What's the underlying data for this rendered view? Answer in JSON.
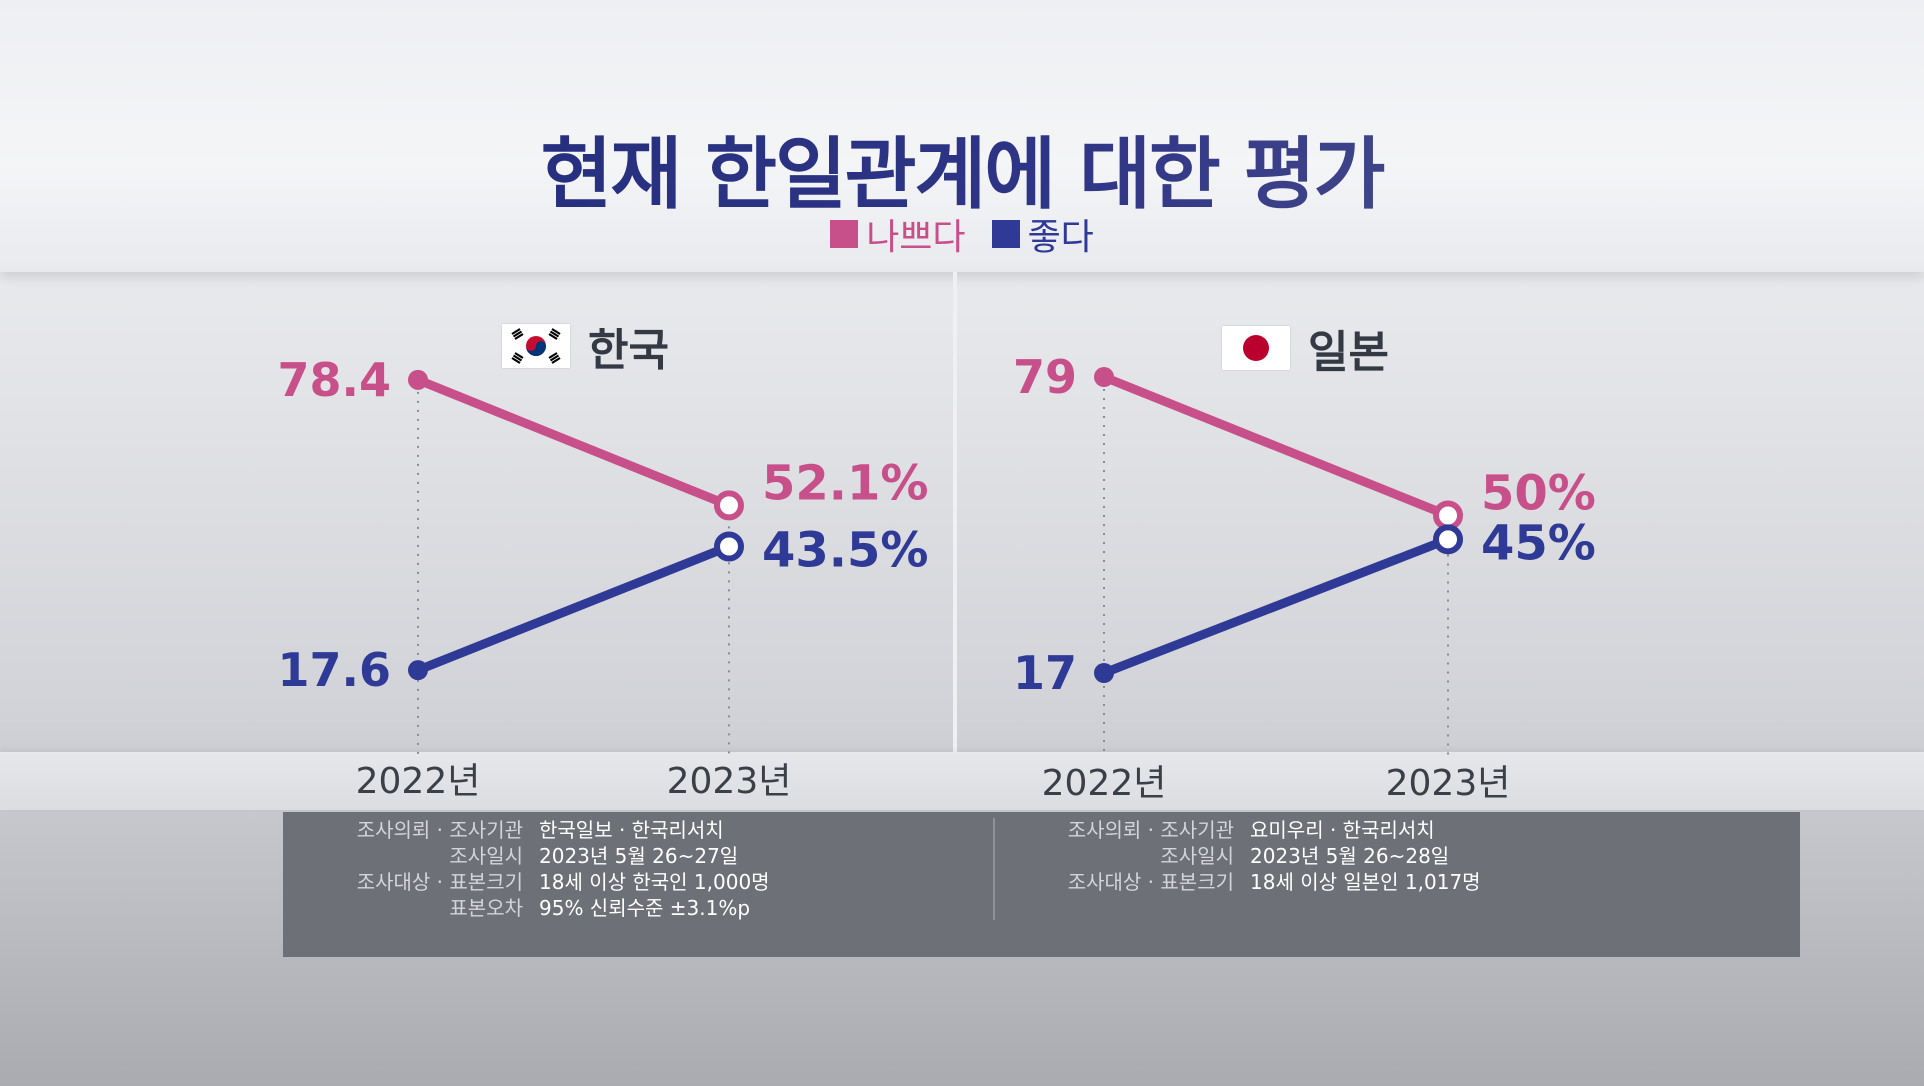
{
  "title": "현재 한일관계에 대한 평가",
  "legend": [
    {
      "label": "나쁘다",
      "color": "#c8508a"
    },
    {
      "label": "좋다",
      "color": "#2f3a96"
    }
  ],
  "chart_data": [
    {
      "type": "line",
      "title": "한국",
      "flag": "korea-flag",
      "x": [
        "2022년",
        "2023년"
      ],
      "series": [
        {
          "name": "나쁘다",
          "color": "#c8508a",
          "values": [
            78.4,
            52.1
          ],
          "labels": [
            "78.4",
            "52.1%"
          ]
        },
        {
          "name": "좋다",
          "color": "#2f3a96",
          "values": [
            17.6,
            43.5
          ],
          "labels": [
            "17.6",
            "43.5%"
          ]
        }
      ]
    },
    {
      "type": "line",
      "title": "일본",
      "flag": "japan-flag",
      "x": [
        "2022년",
        "2023년"
      ],
      "series": [
        {
          "name": "나쁘다",
          "color": "#c8508a",
          "values": [
            79,
            50
          ],
          "labels": [
            "79",
            "50%"
          ]
        },
        {
          "name": "좋다",
          "color": "#2f3a96",
          "values": [
            17,
            45
          ],
          "labels": [
            "17",
            "45%"
          ]
        }
      ]
    }
  ],
  "survey_info": [
    {
      "rows": [
        {
          "label": "조사의뢰 · 조사기관",
          "value": "한국일보 · 한국리서치"
        },
        {
          "label": "조사일시",
          "value": "2023년 5월 26~27일"
        },
        {
          "label": "조사대상 · 표본크기",
          "value": "18세 이상 한국인 1,000명"
        },
        {
          "label": "표본오차",
          "value": "95% 신뢰수준 ±3.1%p"
        }
      ]
    },
    {
      "rows": [
        {
          "label": "조사의뢰 · 조사기관",
          "value": "요미우리 · 한국리서치"
        },
        {
          "label": "조사일시",
          "value": "2023년 5월 26~28일"
        },
        {
          "label": "조사대상 · 표본크기",
          "value": "18세 이상 일본인 1,017명"
        }
      ]
    }
  ]
}
